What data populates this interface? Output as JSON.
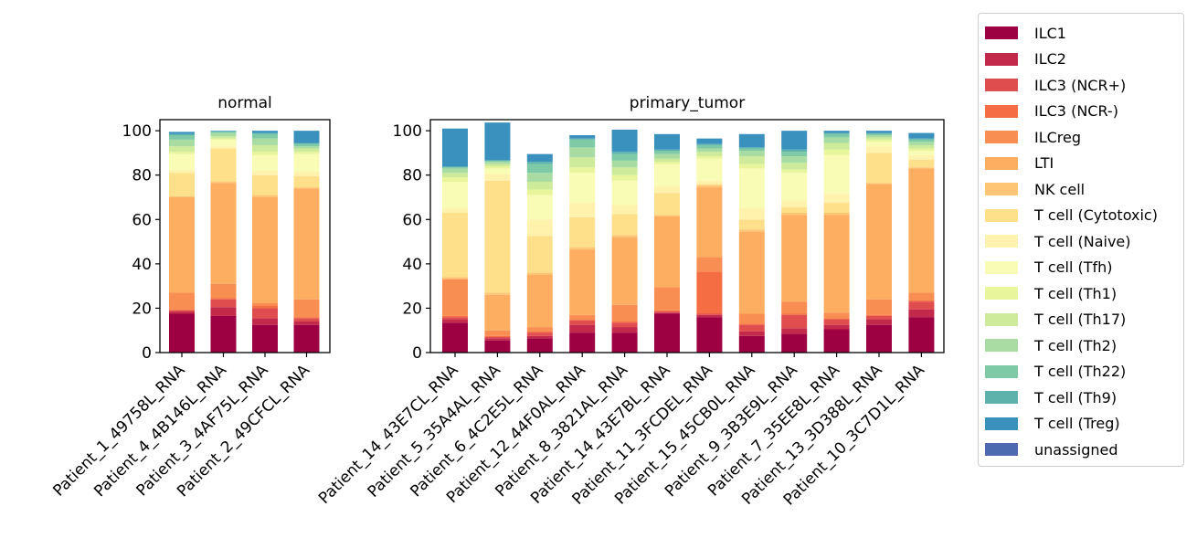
{
  "chart_data": [
    {
      "type": "bar",
      "stacked": true,
      "title": "normal",
      "ylim": [
        0,
        105
      ],
      "yticks": [
        0,
        20,
        40,
        60,
        80,
        100
      ],
      "categories": [
        "Patient_1_49758L_RNA",
        "Patient_4_4B146L_RNA",
        "Patient_3_4AF75L_RNA",
        "Patient_2_49CFCL_RNA"
      ],
      "series": [
        {
          "name": "ILC1",
          "values": [
            17.5,
            16.5,
            12.5,
            12.5
          ]
        },
        {
          "name": "ILC2",
          "values": [
            1.0,
            4.0,
            3.0,
            1.5
          ]
        },
        {
          "name": "ILC3 (NCR+)",
          "values": [
            0.5,
            3.5,
            4.5,
            1.5
          ]
        },
        {
          "name": "ILC3 (NCR-)",
          "values": [
            0.5,
            0.5,
            1.0,
            0.5
          ]
        },
        {
          "name": "ILCreg",
          "values": [
            7.5,
            6.5,
            1.5,
            8.0
          ]
        },
        {
          "name": "LTI",
          "values": [
            43.0,
            45.5,
            47.5,
            50.0
          ]
        },
        {
          "name": "NK cell",
          "values": [
            0.5,
            0.5,
            1.0,
            0.5
          ]
        },
        {
          "name": "T cell (Cytotoxic)",
          "values": [
            10.5,
            15.0,
            9.0,
            5.0
          ]
        },
        {
          "name": "T cell (Naive)",
          "values": [
            1.5,
            1.0,
            2.0,
            2.0
          ]
        },
        {
          "name": "T cell (Tfh)",
          "values": [
            7.0,
            3.0,
            7.0,
            8.0
          ]
        },
        {
          "name": "T cell (Th1)",
          "values": [
            1.0,
            0.5,
            1.5,
            1.0
          ]
        },
        {
          "name": "T cell (Th17)",
          "values": [
            2.5,
            1.0,
            3.0,
            1.5
          ]
        },
        {
          "name": "T cell (Th2)",
          "values": [
            3.0,
            1.5,
            3.0,
            1.0
          ]
        },
        {
          "name": "T cell (Th22)",
          "values": [
            2.0,
            0.5,
            2.0,
            1.0
          ]
        },
        {
          "name": "T cell (Th9)",
          "values": [
            0.5,
            0.2,
            0.5,
            0.5
          ]
        },
        {
          "name": "T cell (Treg)",
          "values": [
            1.0,
            0.3,
            1.0,
            5.5
          ]
        },
        {
          "name": "unassigned",
          "values": [
            0,
            0,
            0,
            0
          ]
        }
      ]
    },
    {
      "type": "bar",
      "stacked": true,
      "title": "primary_tumor",
      "ylim": [
        0,
        105
      ],
      "yticks": [
        0,
        20,
        40,
        60,
        80,
        100
      ],
      "categories": [
        "Patient_14_43E7CL_RNA",
        "Patient_5_35A4AL_RNA",
        "Patient_6_4C2E5L_RNA",
        "Patient_12_44F0AL_RNA",
        "Patient_8_3821AL_RNA",
        "Patient_14_43E7BL_RNA",
        "Patient_11_3FCDEL_RNA",
        "Patient_15_45CB0L_RNA",
        "Patient_9_3B3E9L_RNA",
        "Patient_7_35EE8L_RNA",
        "Patient_13_3D388L_RNA",
        "Patient_10_3C7D1L_RNA"
      ],
      "series": [
        {
          "name": "ILC1",
          "values": [
            13.5,
            5.5,
            6.5,
            9.0,
            9.0,
            17.5,
            16.0,
            7.5,
            8.5,
            10.5,
            12.5,
            16.0
          ]
        },
        {
          "name": "ILC2",
          "values": [
            1.5,
            1.0,
            1.0,
            3.5,
            2.5,
            0.5,
            1.0,
            2.0,
            2.5,
            2.0,
            2.5,
            3.5
          ]
        },
        {
          "name": "ILC3 (NCR+)",
          "values": [
            1.0,
            0.5,
            1.5,
            2.0,
            2.0,
            0.5,
            0.5,
            3.0,
            6.0,
            2.5,
            1.5,
            3.5
          ]
        },
        {
          "name": "ILC3 (NCR-)",
          "values": [
            0.5,
            0.5,
            0.5,
            0.5,
            0.5,
            0.5,
            19.0,
            0.5,
            0.5,
            0.5,
            0.5,
            0.5
          ]
        },
        {
          "name": "ILCreg",
          "values": [
            16.5,
            2.5,
            2.0,
            2.0,
            7.5,
            10.5,
            6.5,
            4.5,
            5.5,
            2.5,
            7.0,
            3.5
          ]
        },
        {
          "name": "LTI",
          "values": [
            0.5,
            16.0,
            23.5,
            29.5,
            30.5,
            32.0,
            31.5,
            37.0,
            39.0,
            44.0,
            52.0,
            56.0
          ]
        },
        {
          "name": "NK cell",
          "values": [
            0.5,
            1.0,
            1.0,
            1.0,
            1.0,
            0.5,
            1.0,
            1.0,
            1.0,
            1.0,
            0.5,
            0.5
          ]
        },
        {
          "name": "T cell (Cytotoxic)",
          "values": [
            29.0,
            50.5,
            16.5,
            13.5,
            9.5,
            10.0,
            0.5,
            4.5,
            2.5,
            4.5,
            13.5,
            3.5
          ]
        },
        {
          "name": "T cell (Naive)",
          "values": [
            2.0,
            3.0,
            7.5,
            6.5,
            4.0,
            3.0,
            1.5,
            5.0,
            3.0,
            4.0,
            3.0,
            2.0
          ]
        },
        {
          "name": "T cell (Tfh)",
          "values": [
            12.0,
            2.5,
            11.0,
            13.5,
            11.0,
            10.0,
            10.0,
            18.0,
            12.5,
            17.5,
            2.0,
            2.0
          ]
        },
        {
          "name": "T cell (Th1)",
          "values": [
            2.0,
            1.0,
            2.5,
            2.5,
            2.5,
            1.0,
            1.0,
            2.0,
            1.5,
            2.5,
            1.0,
            1.0
          ]
        },
        {
          "name": "T cell (Th17)",
          "values": [
            2.0,
            1.0,
            3.5,
            4.5,
            3.5,
            1.5,
            2.0,
            3.5,
            3.0,
            3.0,
            1.0,
            1.5
          ]
        },
        {
          "name": "T cell (Th2)",
          "values": [
            2.0,
            1.0,
            4.0,
            4.5,
            3.0,
            2.0,
            1.5,
            2.5,
            3.0,
            2.5,
            1.0,
            1.5
          ]
        },
        {
          "name": "T cell (Th22)",
          "values": [
            0.5,
            0.5,
            4.0,
            3.5,
            3.0,
            1.5,
            1.5,
            1.0,
            2.0,
            1.5,
            0.5,
            1.0
          ]
        },
        {
          "name": "T cell (Th9)",
          "values": [
            0.5,
            0.2,
            1.0,
            0.5,
            1.0,
            0.5,
            0.5,
            0.5,
            1.0,
            0.5,
            0.5,
            0.5
          ]
        },
        {
          "name": "T cell (Treg)",
          "values": [
            17.0,
            17.0,
            3.5,
            1.5,
            10.0,
            7.0,
            2.5,
            6.0,
            8.5,
            1.0,
            1.0,
            2.5
          ]
        },
        {
          "name": "unassigned",
          "values": [
            0,
            0,
            0,
            0,
            0,
            0,
            0,
            0,
            0,
            0,
            0,
            0
          ]
        }
      ]
    }
  ],
  "legend": {
    "placement": "outside-right",
    "items": [
      {
        "label": "ILC1",
        "color": "#9e0142"
      },
      {
        "label": "ILC2",
        "color": "#c2294a"
      },
      {
        "label": "ILC3 (NCR+)",
        "color": "#e04d4f"
      },
      {
        "label": "ILC3 (NCR-)",
        "color": "#f46d43"
      },
      {
        "label": "ILCreg",
        "color": "#f98e52"
      },
      {
        "label": "LTI",
        "color": "#fdae61"
      },
      {
        "label": "NK cell",
        "color": "#fec574"
      },
      {
        "label": "T cell (Cytotoxic)",
        "color": "#fee08b"
      },
      {
        "label": "T cell (Naive)",
        "color": "#fff2ad"
      },
      {
        "label": "T cell (Tfh)",
        "color": "#f9fcb5"
      },
      {
        "label": "T cell (Th1)",
        "color": "#e8f59b"
      },
      {
        "label": "T cell (Th17)",
        "color": "#cdeb9a"
      },
      {
        "label": "T cell (Th2)",
        "color": "#a8dca2"
      },
      {
        "label": "T cell (Th22)",
        "color": "#7fcaa6"
      },
      {
        "label": "T cell (Th9)",
        "color": "#5db3ab"
      },
      {
        "label": "T cell (Treg)",
        "color": "#3b91bd"
      },
      {
        "label": "unassigned",
        "color": "#4d6ab0"
      }
    ]
  }
}
